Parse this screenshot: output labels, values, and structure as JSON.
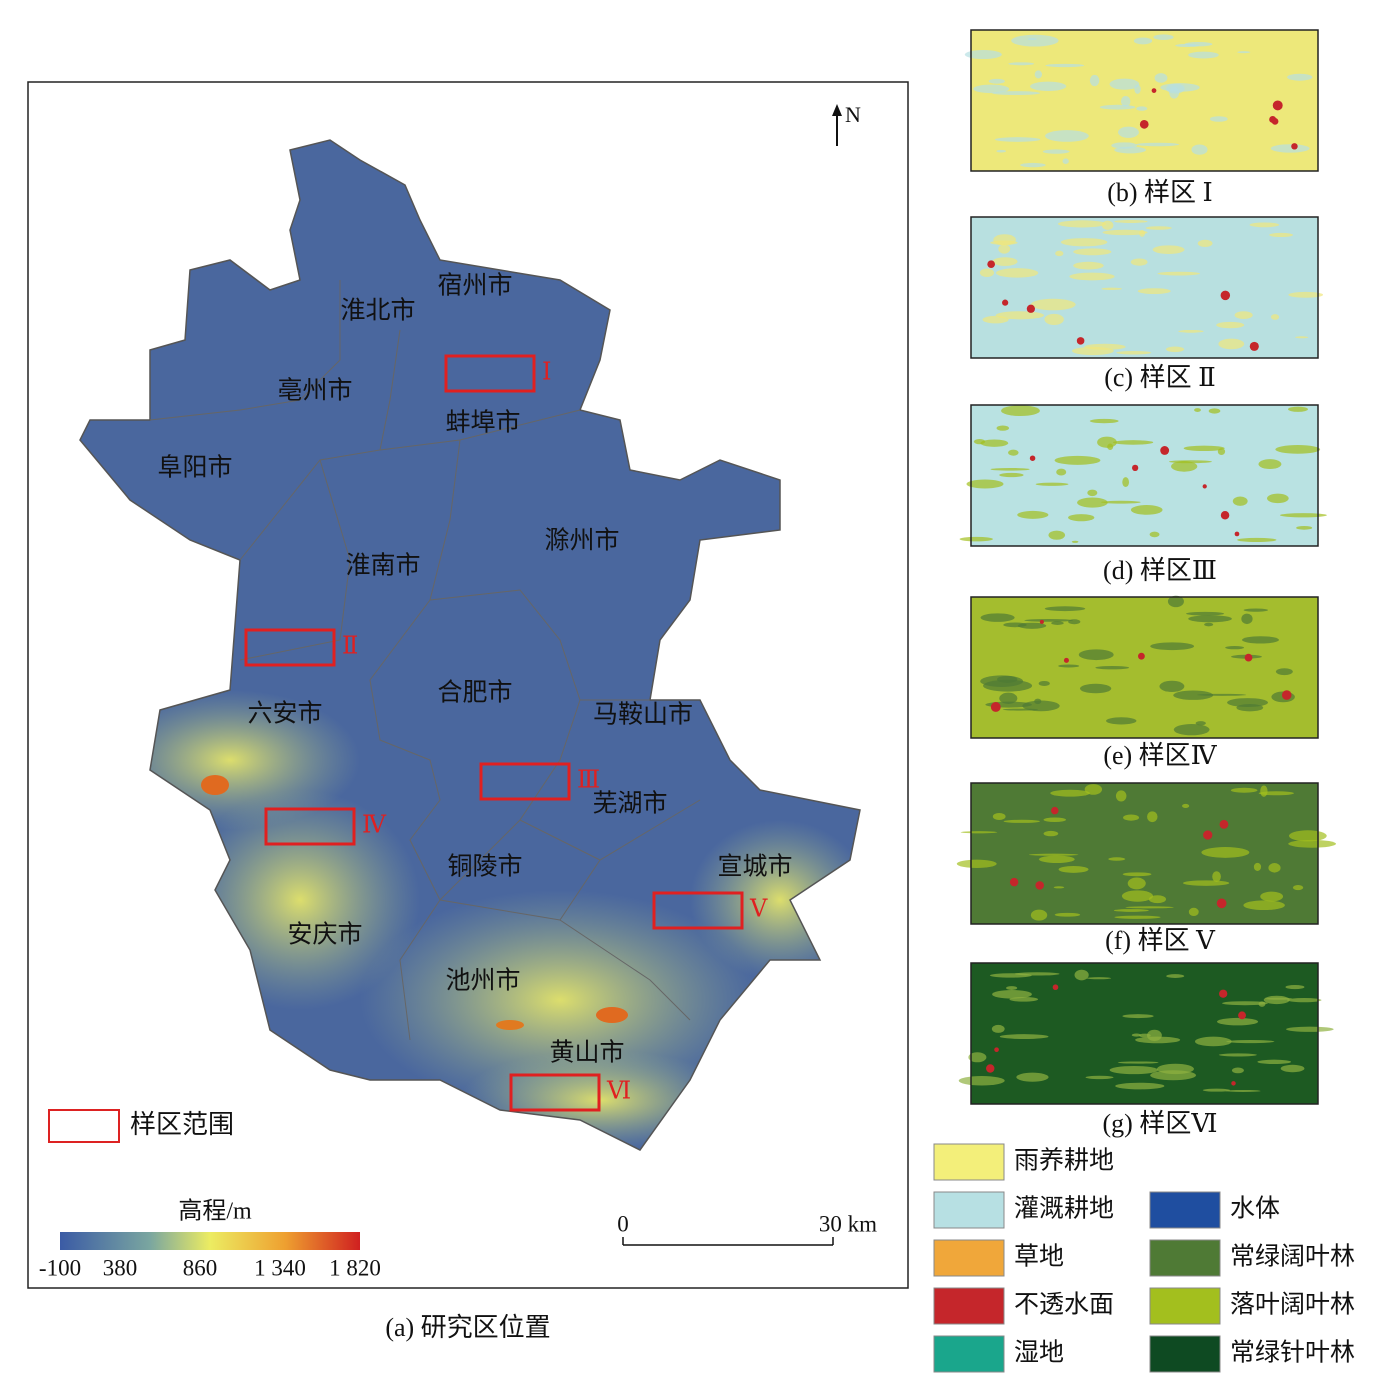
{
  "map": {
    "north": "N",
    "cities": [
      "宿州市",
      "淮北市",
      "亳州市",
      "蚌埠市",
      "阜阳市",
      "滁州市",
      "淮南市",
      "合肥市",
      "六安市",
      "马鞍山市",
      "芜湖市",
      "铜陵市",
      "宣城市",
      "安庆市",
      "池州市",
      "黄山市"
    ],
    "samples": [
      "Ⅰ",
      "Ⅱ",
      "Ⅲ",
      "Ⅳ",
      "Ⅴ",
      "Ⅵ"
    ],
    "legend_label": "样区范围",
    "elevation": {
      "title": "高程/m",
      "ticks": [
        "-100",
        "380",
        "860",
        "1 340",
        "1 820"
      ]
    },
    "scale": {
      "ticks": [
        "0",
        "30 km"
      ]
    },
    "caption": "(a)  研究区位置"
  },
  "panels": [
    {
      "caption": "(b)  样区 Ⅰ"
    },
    {
      "caption": "(c)  样区 Ⅱ"
    },
    {
      "caption": "(d)  样区Ⅲ"
    },
    {
      "caption": "(e)  样区Ⅳ"
    },
    {
      "caption": "(f)  样区 Ⅴ"
    },
    {
      "caption": "(g)  样区Ⅵ"
    }
  ],
  "landcover": [
    {
      "name": "雨养耕地",
      "color": "#f3ef7a"
    },
    {
      "name": "灌溉耕地",
      "color": "#b7e0e3"
    },
    {
      "name": "草地",
      "color": "#f0a73a"
    },
    {
      "name": "不透水面",
      "color": "#c5262b"
    },
    {
      "name": "湿地",
      "color": "#1aa68c"
    },
    {
      "name": "水体",
      "color": "#1f4ea0"
    },
    {
      "name": "常绿阔叶林",
      "color": "#4f7a35"
    },
    {
      "name": "落叶阔叶林",
      "color": "#a3bf1e"
    },
    {
      "name": "常绿针叶林",
      "color": "#0e4a22"
    }
  ]
}
